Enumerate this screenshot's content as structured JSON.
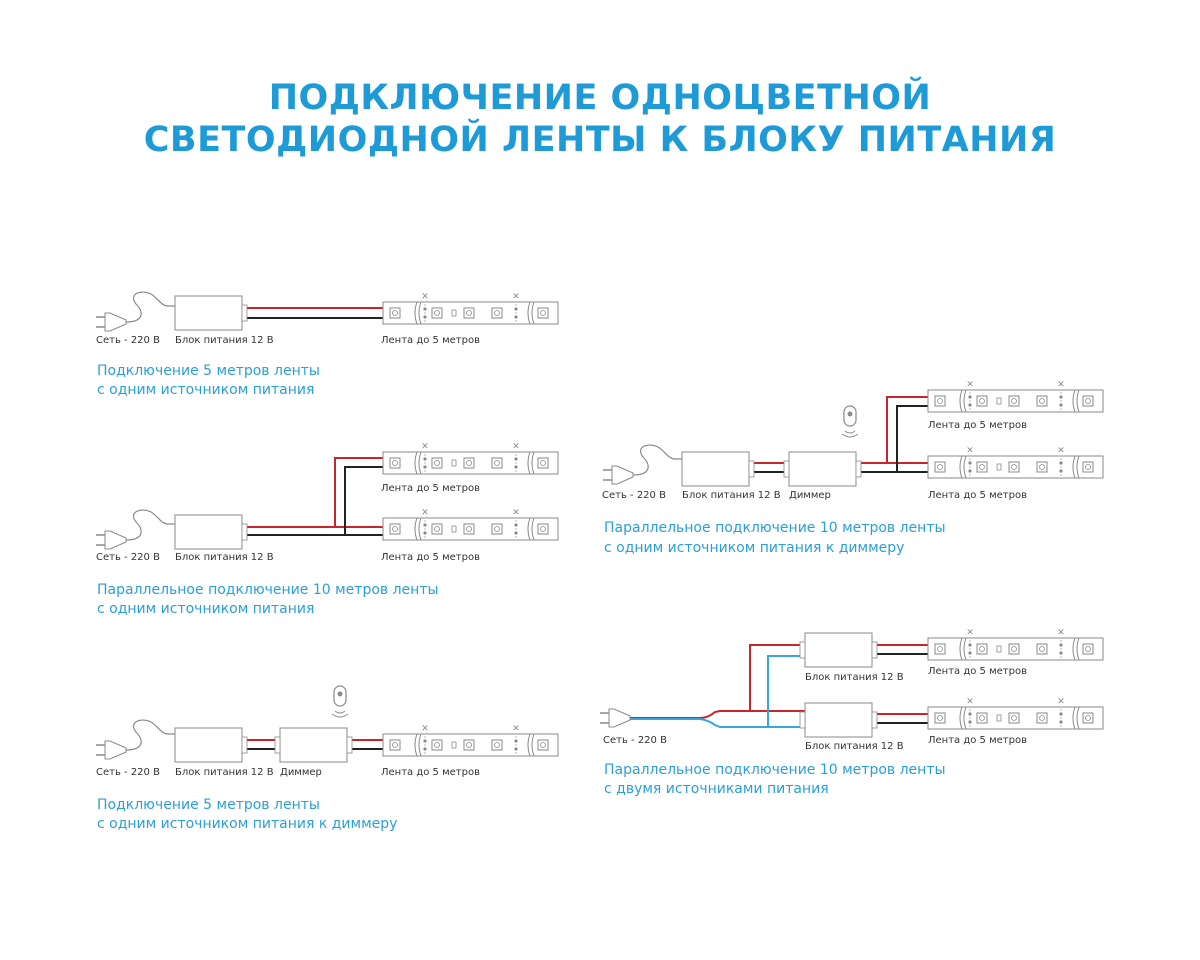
{
  "title": {
    "line1": "ПОДКЛЮЧЕНИЕ ОДНОЦВЕТНОЙ",
    "line2": "СВЕТОДИОДНОЙ ЛЕНТЫ К БЛОКУ ПИТАНИЯ"
  },
  "colors": {
    "accent": "#1e9bd7",
    "wire_positive": "#c8262c",
    "wire_negative": "#222222",
    "wire_neutral": "#3aa7dc",
    "outline": "#8a8a8a"
  },
  "labels": {
    "mains": "Сеть - 220 В",
    "psu": "Блок питания 12 В",
    "dimmer": "Диммер",
    "strip": "Лента до 5 метров"
  },
  "diagrams": [
    {
      "caption1": "Подключение 5 метров ленты",
      "caption2": "с одним источником питания"
    },
    {
      "caption1": "Параллельное подключение 10 метров ленты",
      "caption2": "с одним источником питания"
    },
    {
      "caption1": "Подключение 5 метров ленты",
      "caption2": "с одним источником питания к диммеру"
    },
    {
      "caption1": "Параллельное подключение 10 метров ленты",
      "caption2": "с одним источником питания к диммеру"
    },
    {
      "caption1": "Параллельное подключение 10 метров ленты",
      "caption2": "с двумя источниками питания"
    }
  ]
}
